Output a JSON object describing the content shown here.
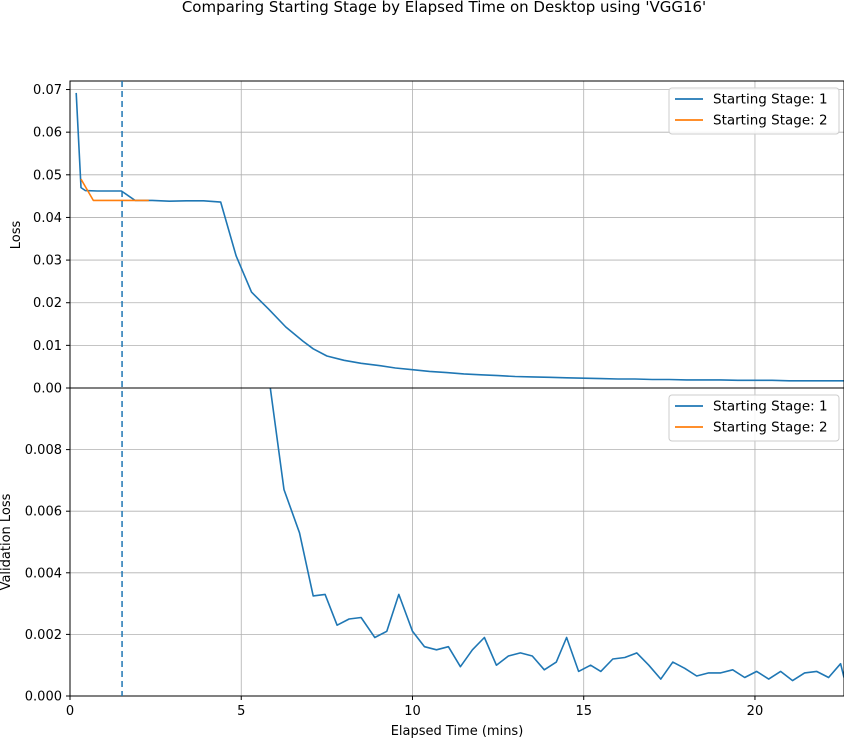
{
  "chart_data": {
    "type": "line",
    "title": "Comparing Starting Stage by Elapsed Time on Desktop using 'VGG16'",
    "xlabel": "Elapsed Time (mins)",
    "xlim": [
      0,
      22.6
    ],
    "x_ticks": [
      0,
      5,
      10,
      15,
      20
    ],
    "grid": true,
    "vline_x": 1.52,
    "panels": [
      {
        "ylabel": "Loss",
        "ylim": [
          0,
          0.072
        ],
        "y_ticks": [
          0.0,
          0.01,
          0.02,
          0.03,
          0.04,
          0.05,
          0.06,
          0.07
        ],
        "y_tick_labels": [
          "0.00",
          "0.01",
          "0.02",
          "0.03",
          "0.04",
          "0.05",
          "0.06",
          "0.07"
        ],
        "legend": "top-right",
        "series": [
          {
            "name": "Starting Stage: 1",
            "color": "#1f77b4",
            "x": [
              0.18,
              0.32,
              0.45,
              0.8,
              1.1,
              1.5,
              1.9,
              2.4,
              2.9,
              3.4,
              3.9,
              4.4,
              4.85,
              5.3,
              5.8,
              6.3,
              6.8,
              7.1,
              7.5,
              8.0,
              8.5,
              9.0,
              9.5,
              10.0,
              10.5,
              11.0,
              11.5,
              12.0,
              12.5,
              13.0,
              13.5,
              14.0,
              14.5,
              15.0,
              15.5,
              16.0,
              16.5,
              17.0,
              17.5,
              18.0,
              18.5,
              19.0,
              19.5,
              20.0,
              20.5,
              21.0,
              21.5,
              22.0,
              22.6
            ],
            "y": [
              0.0692,
              0.047,
              0.0463,
              0.0462,
              0.0462,
              0.0462,
              0.044,
              0.044,
              0.0438,
              0.0439,
              0.0439,
              0.0436,
              0.031,
              0.0225,
              0.0185,
              0.0143,
              0.011,
              0.0092,
              0.0075,
              0.0065,
              0.0058,
              0.0053,
              0.0047,
              0.0043,
              0.0039,
              0.0036,
              0.0033,
              0.0031,
              0.0029,
              0.0027,
              0.0026,
              0.0025,
              0.0024,
              0.0023,
              0.0022,
              0.0021,
              0.0021,
              0.002,
              0.002,
              0.0019,
              0.0019,
              0.0019,
              0.0018,
              0.0018,
              0.0018,
              0.0017,
              0.0017,
              0.0017,
              0.0017
            ]
          },
          {
            "name": "Starting Stage: 2",
            "color": "#ff7f0e",
            "x": [
              0.32,
              0.68,
              1.05,
              1.45,
              1.8,
              2.3
            ],
            "y": [
              0.049,
              0.044,
              0.044,
              0.044,
              0.044,
              0.044
            ]
          }
        ]
      },
      {
        "ylabel": "Validation Loss",
        "ylim": [
          0,
          0.01
        ],
        "y_ticks": [
          0.0,
          0.002,
          0.004,
          0.006,
          0.008
        ],
        "y_tick_labels": [
          "0.000",
          "0.002",
          "0.004",
          "0.006",
          "0.008"
        ],
        "legend": "top-right",
        "series": [
          {
            "name": "Starting Stage: 1",
            "color": "#1f77b4",
            "x": [
              5.85,
              6.25,
              6.7,
              7.1,
              7.45,
              7.8,
              8.15,
              8.5,
              8.9,
              9.25,
              9.6,
              10.0,
              10.35,
              10.7,
              11.05,
              11.4,
              11.75,
              12.1,
              12.45,
              12.8,
              13.15,
              13.5,
              13.85,
              14.2,
              14.5,
              14.85,
              15.2,
              15.5,
              15.85,
              16.2,
              16.55,
              16.9,
              17.25,
              17.6,
              17.95,
              18.3,
              18.65,
              19.0,
              19.35,
              19.7,
              20.05,
              20.4,
              20.75,
              21.1,
              21.45,
              21.8,
              22.15,
              22.5,
              22.6
            ],
            "y": [
              0.01,
              0.0067,
              0.0053,
              0.00325,
              0.0033,
              0.0023,
              0.0025,
              0.00255,
              0.0019,
              0.0021,
              0.0033,
              0.0021,
              0.0016,
              0.0015,
              0.0016,
              0.00095,
              0.0015,
              0.0019,
              0.001,
              0.0013,
              0.0014,
              0.0013,
              0.00085,
              0.0011,
              0.0019,
              0.0008,
              0.001,
              0.0008,
              0.0012,
              0.00125,
              0.0014,
              0.001,
              0.00055,
              0.0011,
              0.0009,
              0.00065,
              0.00075,
              0.00075,
              0.00085,
              0.0006,
              0.0008,
              0.00055,
              0.0008,
              0.0005,
              0.00075,
              0.0008,
              0.0006,
              0.00105,
              0.0006
            ]
          },
          {
            "name": "Starting Stage: 2",
            "color": "#ff7f0e",
            "x": [],
            "y": []
          }
        ]
      }
    ]
  }
}
